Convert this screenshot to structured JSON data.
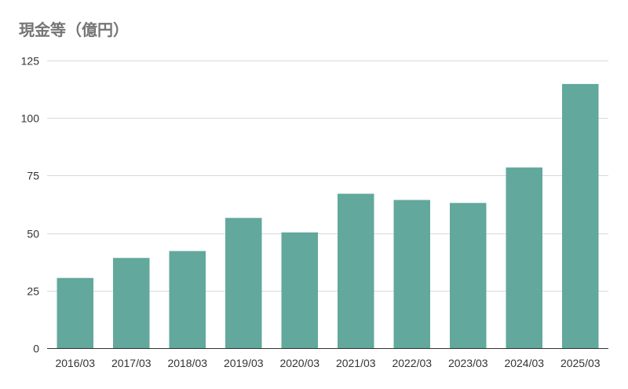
{
  "title": "現金等（億円）",
  "colors": {
    "bar": "#62a89c",
    "grid": "#d9d9d9",
    "axis": "#333333",
    "title": "#757575"
  },
  "chart_data": {
    "type": "bar",
    "title": "現金等（億円）",
    "xlabel": "",
    "ylabel": "",
    "categories": [
      "2016/03",
      "2017/03",
      "2018/03",
      "2019/03",
      "2020/03",
      "2021/03",
      "2022/03",
      "2023/03",
      "2024/03",
      "2025/03"
    ],
    "series": [
      {
        "values": [
          30.5,
          39.2,
          42.2,
          56.6,
          50.3,
          67.1,
          64.4,
          63.1,
          78.5,
          114.8
        ]
      }
    ],
    "ylim": [
      0,
      125
    ],
    "yticks": [
      0,
      25,
      50,
      75,
      100,
      125
    ],
    "grid": true,
    "legend": "none"
  }
}
